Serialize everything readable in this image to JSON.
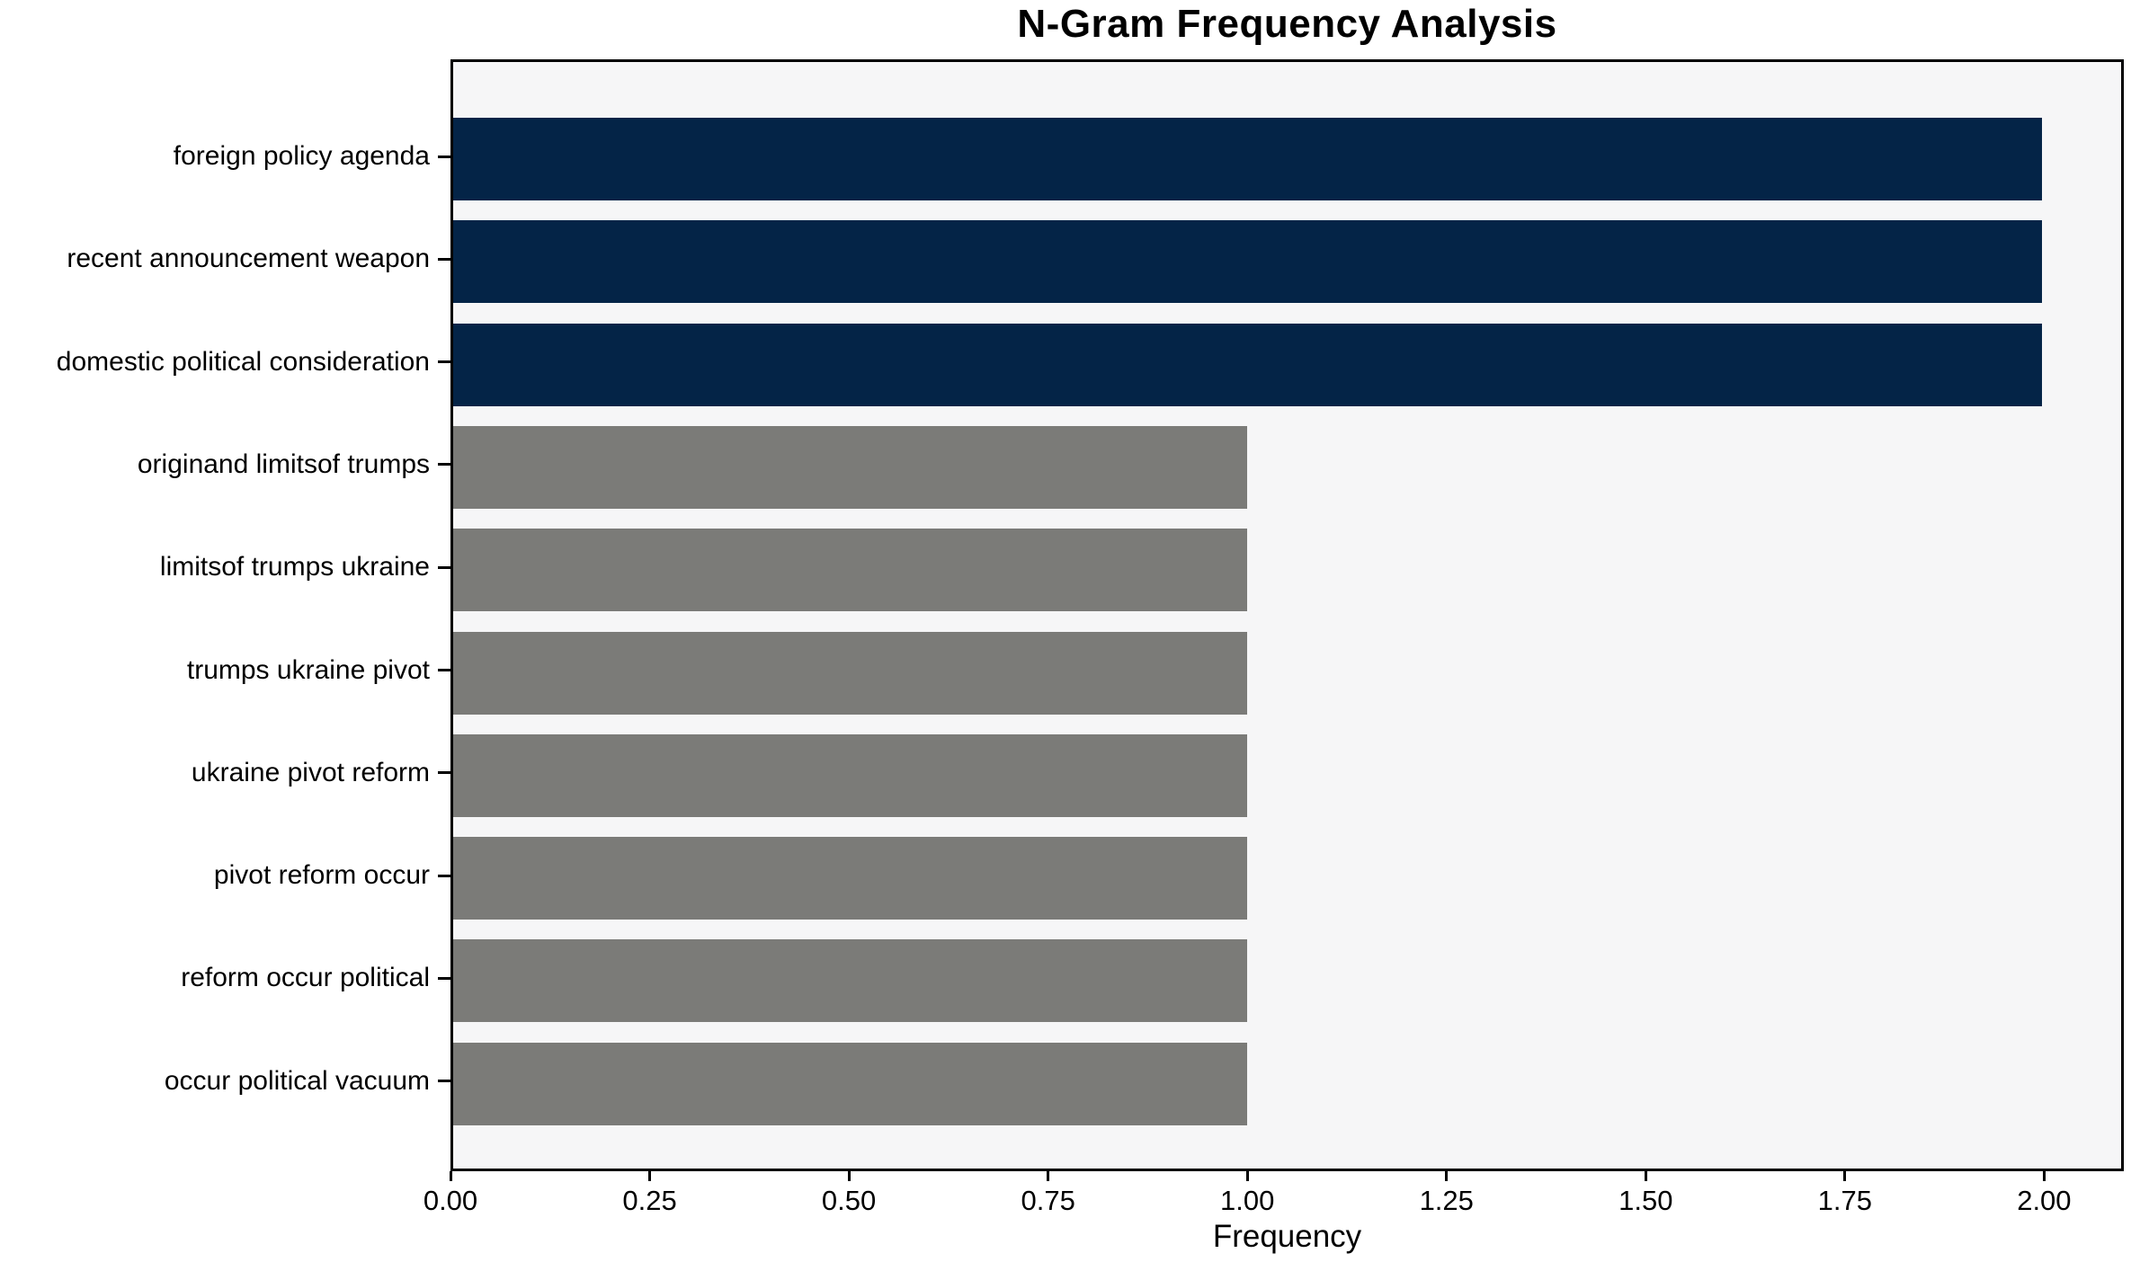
{
  "chart_data": {
    "type": "bar",
    "orientation": "horizontal",
    "title": "N-Gram Frequency Analysis",
    "xlabel": "Frequency",
    "ylabel": "",
    "categories": [
      "foreign policy agenda",
      "recent announcement weapon",
      "domestic political consideration",
      "originand limitsof trumps",
      "limitsof trumps ukraine",
      "trumps ukraine pivot",
      "ukraine pivot reform",
      "pivot reform occur",
      "reform occur political",
      "occur political vacuum"
    ],
    "values": [
      2,
      2,
      2,
      1,
      1,
      1,
      1,
      1,
      1,
      1
    ],
    "bar_colors": [
      "#042447",
      "#042447",
      "#042447",
      "#7b7b78",
      "#7b7b78",
      "#7b7b78",
      "#7b7b78",
      "#7b7b78",
      "#7b7b78",
      "#7b7b78"
    ],
    "xlim": [
      0,
      2.1
    ],
    "xticks": [
      0.0,
      0.25,
      0.5,
      0.75,
      1.0,
      1.25,
      1.5,
      1.75,
      2.0
    ],
    "xtick_labels": [
      "0.00",
      "0.25",
      "0.50",
      "0.75",
      "1.00",
      "1.25",
      "1.50",
      "1.75",
      "2.00"
    ],
    "grid": false,
    "legend": false
  },
  "colors": {
    "figure_background": "#ffffff",
    "plot_background": "#f6f6f7",
    "spine": "#000000",
    "bar_high": "#042447",
    "bar_low": "#7b7b78",
    "text": "#000000"
  }
}
